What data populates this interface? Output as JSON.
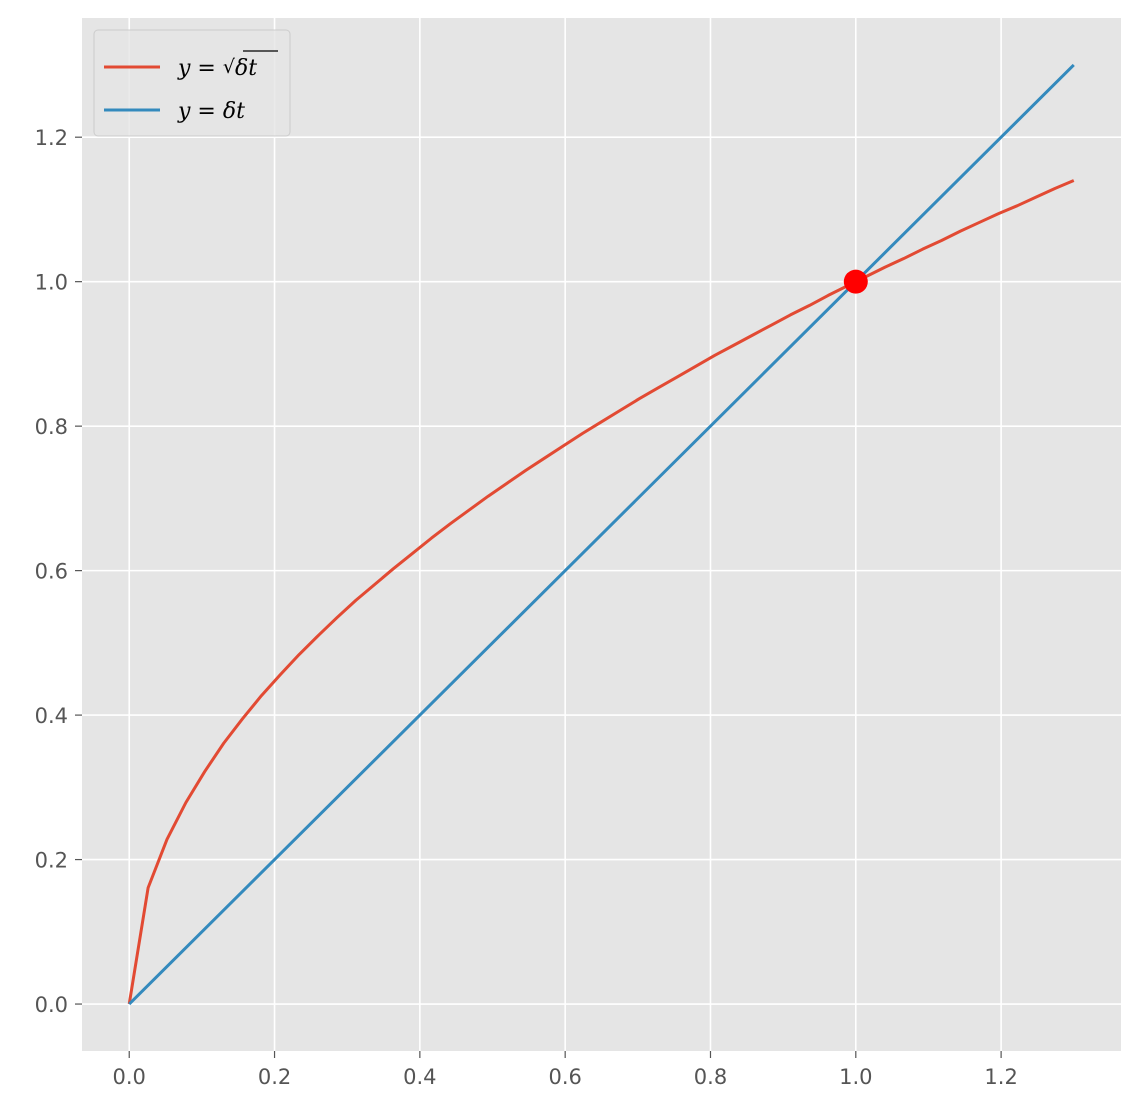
{
  "chart_data": {
    "type": "line",
    "title": "",
    "xlabel": "",
    "ylabel": "",
    "xlim": [
      -0.065,
      1.365
    ],
    "ylim": [
      -0.065,
      1.365
    ],
    "xticks": [
      0.0,
      0.2,
      0.4,
      0.6,
      0.8,
      1.0,
      1.2
    ],
    "yticks": [
      0.0,
      0.2,
      0.4,
      0.6,
      0.8,
      1.0,
      1.2
    ],
    "xtick_labels": [
      "0.0",
      "0.2",
      "0.4",
      "0.6",
      "0.8",
      "1.0",
      "1.2"
    ],
    "ytick_labels": [
      "0.0",
      "0.2",
      "0.4",
      "0.6",
      "0.8",
      "1.0",
      "1.2"
    ],
    "grid": true,
    "style": "ggplot",
    "background": "#e5e5e5",
    "legend": {
      "placement": "top-left"
    },
    "series": [
      {
        "name": "y = √δt",
        "legend_label": {
          "lhs": "y",
          "eq": " = ",
          "radical": "√",
          "radicand": "δt"
        },
        "color": "#e24a33",
        "function": "sqrt",
        "x": [
          0.0,
          0.026,
          0.052,
          0.078,
          0.104,
          0.13,
          0.156,
          0.182,
          0.208,
          0.234,
          0.26,
          0.286,
          0.312,
          0.338,
          0.364,
          0.39,
          0.416,
          0.442,
          0.468,
          0.494,
          0.52,
          0.546,
          0.572,
          0.598,
          0.624,
          0.65,
          0.676,
          0.702,
          0.728,
          0.754,
          0.78,
          0.806,
          0.832,
          0.858,
          0.884,
          0.91,
          0.936,
          0.962,
          0.988,
          1.014,
          1.04,
          1.066,
          1.092,
          1.118,
          1.144,
          1.17,
          1.196,
          1.222,
          1.248,
          1.274,
          1.3
        ],
        "y": [
          0.0,
          0.161,
          0.228,
          0.279,
          0.322,
          0.361,
          0.395,
          0.427,
          0.456,
          0.484,
          0.51,
          0.535,
          0.559,
          0.581,
          0.603,
          0.624,
          0.645,
          0.665,
          0.684,
          0.703,
          0.721,
          0.739,
          0.756,
          0.773,
          0.79,
          0.806,
          0.822,
          0.838,
          0.853,
          0.868,
          0.883,
          0.898,
          0.912,
          0.926,
          0.94,
          0.954,
          0.967,
          0.981,
          0.994,
          1.007,
          1.02,
          1.032,
          1.045,
          1.057,
          1.07,
          1.082,
          1.094,
          1.105,
          1.117,
          1.129,
          1.14
        ]
      },
      {
        "name": "y = δt",
        "legend_label": {
          "lhs": "y",
          "eq": " = ",
          "rhs": "δt"
        },
        "color": "#348abd",
        "function": "linear",
        "x": [
          0.0,
          1.3
        ],
        "y": [
          0.0,
          1.3
        ]
      }
    ],
    "points": [
      {
        "x": 1.0,
        "y": 1.0,
        "color": "#ff0000"
      }
    ]
  }
}
